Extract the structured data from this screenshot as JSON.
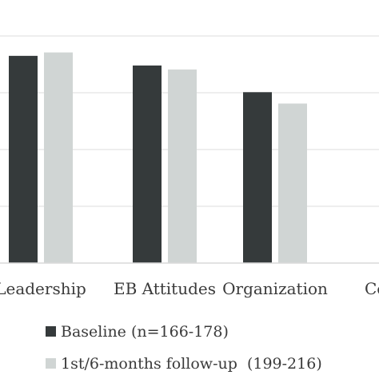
{
  "chart_data": {
    "type": "bar",
    "categories": [
      "Leadership",
      "EB Attitudes",
      "Organization",
      "Co"
    ],
    "series": [
      {
        "name": "Baseline (n=166-178)",
        "color": "#353a3b",
        "values": [
          3.65,
          3.48,
          3.01,
          null
        ]
      },
      {
        "name": "1st/6-months follow-up  (199-216)",
        "color": "#d0d5d4",
        "values": [
          3.71,
          3.41,
          2.81,
          null
        ]
      }
    ],
    "ylim": [
      0,
      4
    ],
    "grid": true,
    "legend_position": "bottom"
  }
}
